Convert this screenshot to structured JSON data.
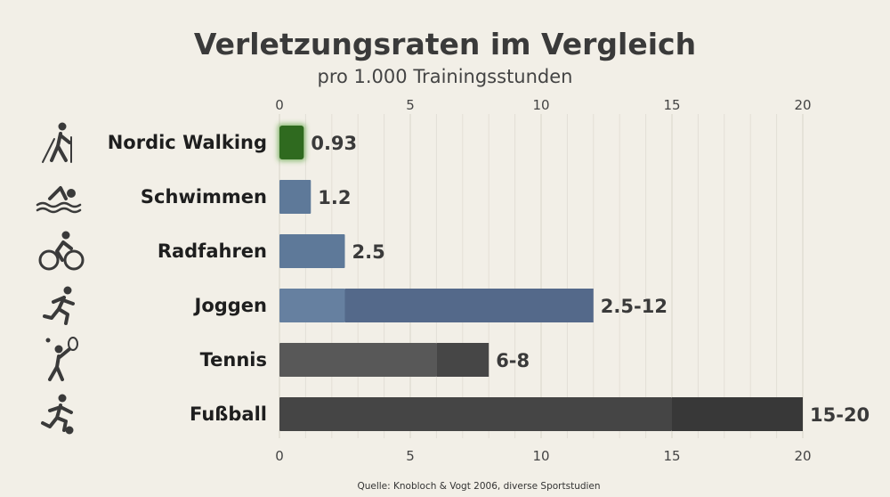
{
  "chart_data": {
    "type": "bar",
    "orientation": "horizontal",
    "title": "Verletzungsraten im Vergleich",
    "subtitle": "pro 1.000 Trainingsstunden",
    "source": "Quelle: Knobloch & Vogt 2006, diverse Sportstudien",
    "xlim": [
      0,
      20
    ],
    "xticks": [
      0,
      5,
      10,
      15,
      20
    ],
    "grid": true,
    "categories": [
      "Nordic Walking",
      "Schwimmen",
      "Radfahren",
      "Joggen",
      "Tennis",
      "Fußball"
    ],
    "icons": [
      "nordic-walking-icon",
      "swimming-icon",
      "cycling-icon",
      "running-icon",
      "tennis-icon",
      "football-icon"
    ],
    "values": [
      {
        "min": 0.93,
        "max": 0.93,
        "label": "0.93",
        "color": "#2f6a1f",
        "range_color": "#2f6a1f"
      },
      {
        "min": 1.2,
        "max": 1.2,
        "label": "1.2",
        "color": "#5e7999",
        "range_color": "#5e7999"
      },
      {
        "min": 2.5,
        "max": 2.5,
        "label": "2.5",
        "color": "#5e7999",
        "range_color": "#5e7999"
      },
      {
        "min": 2.5,
        "max": 12,
        "label": "2.5-12",
        "color": "#6680a0",
        "range_color": "#54698a"
      },
      {
        "min": 6,
        "max": 8,
        "label": "6-8",
        "color": "#585858",
        "range_color": "#464646"
      },
      {
        "min": 15,
        "max": 20,
        "label": "15-20",
        "color": "#454545",
        "range_color": "#383838"
      }
    ]
  }
}
